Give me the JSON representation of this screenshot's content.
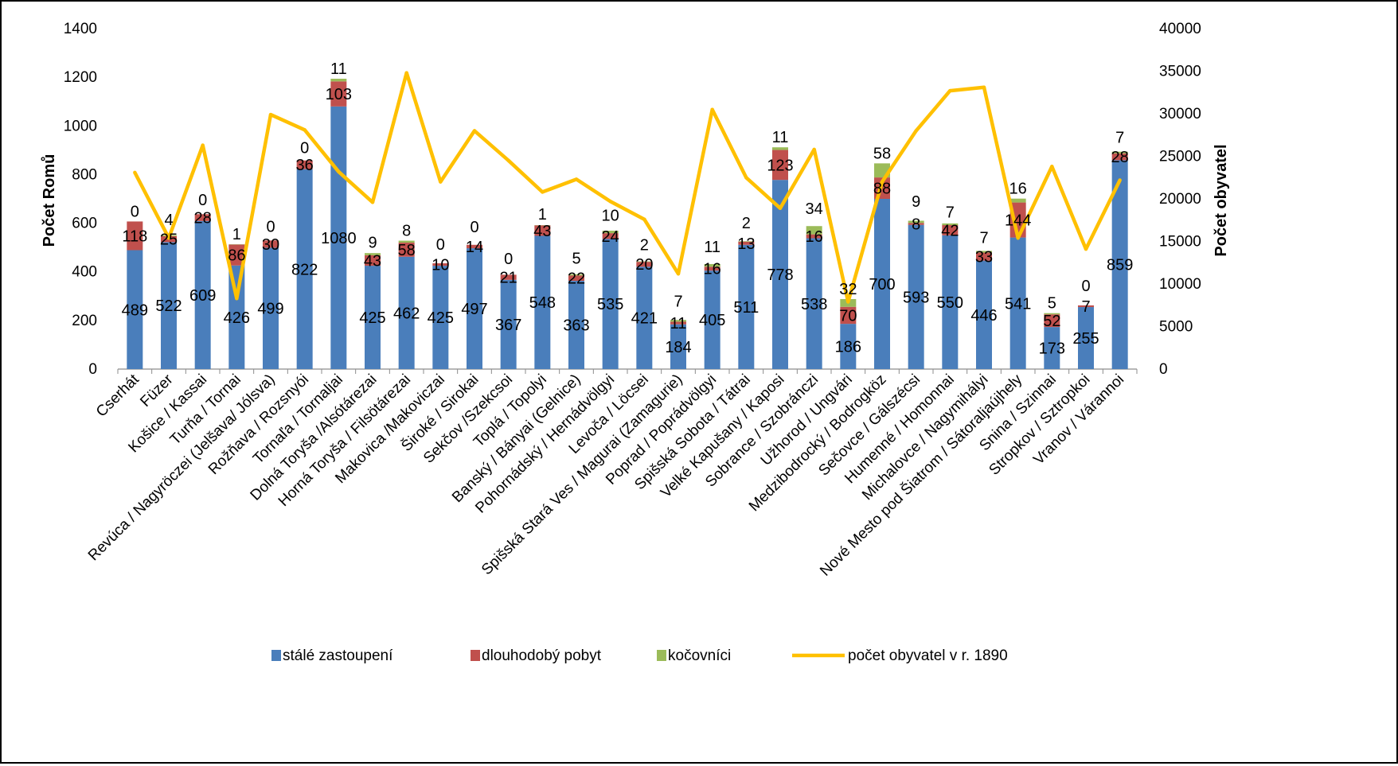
{
  "chart_data": {
    "type": "bar",
    "stacked": true,
    "categories": [
      "Cserhát",
      "Füzer",
      "Košice / Kassai",
      "Turňa / Tornai",
      "Revúca / Nagyröczei (Jelšava/ Jólsva)",
      "Rožňava / Rozsnyói",
      "Tornaľa / Tornaljai",
      "Dolná Toryša /Alsótárezai",
      "Horná Toryša / Filsötárezai",
      "Makovica /Makoviczai",
      "Široké / Sirokai",
      "Sekčov /Szekcsoi",
      "Toplá / Topolyi",
      "Banský / Bányai (Gelnice)",
      "Pohornádský / Hernádvölgyi",
      "Levoča / Löcsei",
      "Spišská Stará Ves / Magurai (Zamagurie)",
      "Poprad / Poprádvölgyi",
      "Spišská Sobota / Tátrai",
      "Velké Kapušany / Kaposi",
      "Sobrance / Szobránczi",
      "Užhorod / Ungvári",
      "Medzibodrocký / Bodrogköz",
      "Sečovce / Gálszécsi",
      "Humenné / Homonnai",
      "Michalovce / Nagymihályi",
      "Nové Mesto pod Šiatrom / Sátoraljaújhely",
      "Snina / Szinnai",
      "Stropkov / Sztropkoi",
      "Vranov / Várannoi"
    ],
    "series": [
      {
        "name": "stálé zastoupení",
        "color": "#4a7ebb",
        "axis": "left",
        "kind": "bar",
        "values": [
          489,
          522,
          609,
          426,
          499,
          822,
          1080,
          425,
          462,
          425,
          497,
          367,
          548,
          363,
          535,
          421,
          184,
          405,
          511,
          778,
          538,
          186,
          700,
          593,
          550,
          446,
          541,
          173,
          255,
          859
        ]
      },
      {
        "name": "dlouhodobý pobyt",
        "color": "#c0504d",
        "axis": "left",
        "kind": "bar",
        "values": [
          118,
          25,
          28,
          86,
          30,
          36,
          103,
          43,
          58,
          10,
          14,
          21,
          43,
          22,
          24,
          20,
          11,
          16,
          13,
          123,
          16,
          70,
          88,
          8,
          42,
          33,
          144,
          52,
          7,
          28
        ]
      },
      {
        "name": "kočovníci",
        "color": "#9bbb59",
        "axis": "left",
        "kind": "bar",
        "values": [
          0,
          4,
          0,
          1,
          0,
          0,
          11,
          9,
          8,
          0,
          0,
          0,
          1,
          5,
          10,
          2,
          7,
          11,
          2,
          11,
          34,
          32,
          58,
          9,
          7,
          7,
          16,
          5,
          0,
          7
        ]
      },
      {
        "name": "počet obyvatel v r. 1890",
        "color": "#ffc000",
        "axis": "right",
        "kind": "line",
        "values": [
          23100,
          15400,
          26300,
          8300,
          29900,
          28100,
          23200,
          19600,
          34800,
          22000,
          28000,
          24500,
          20800,
          22300,
          19700,
          17600,
          11200,
          30500,
          22500,
          18900,
          25800,
          7900,
          22000,
          28000,
          32700,
          33100,
          15400,
          23800,
          14100,
          22200
        ]
      }
    ],
    "ylabel_left": "Počet Romů",
    "ylabel_right": "Počet obyvatel",
    "ylim_left": [
      0,
      1400
    ],
    "ylim_right": [
      0,
      40000
    ],
    "yticks_left": [
      0,
      200,
      400,
      600,
      800,
      1000,
      1200,
      1400
    ],
    "yticks_right": [
      0,
      5000,
      10000,
      15000,
      20000,
      25000,
      30000,
      35000,
      40000
    ],
    "grid": false,
    "legend": "bottom"
  }
}
